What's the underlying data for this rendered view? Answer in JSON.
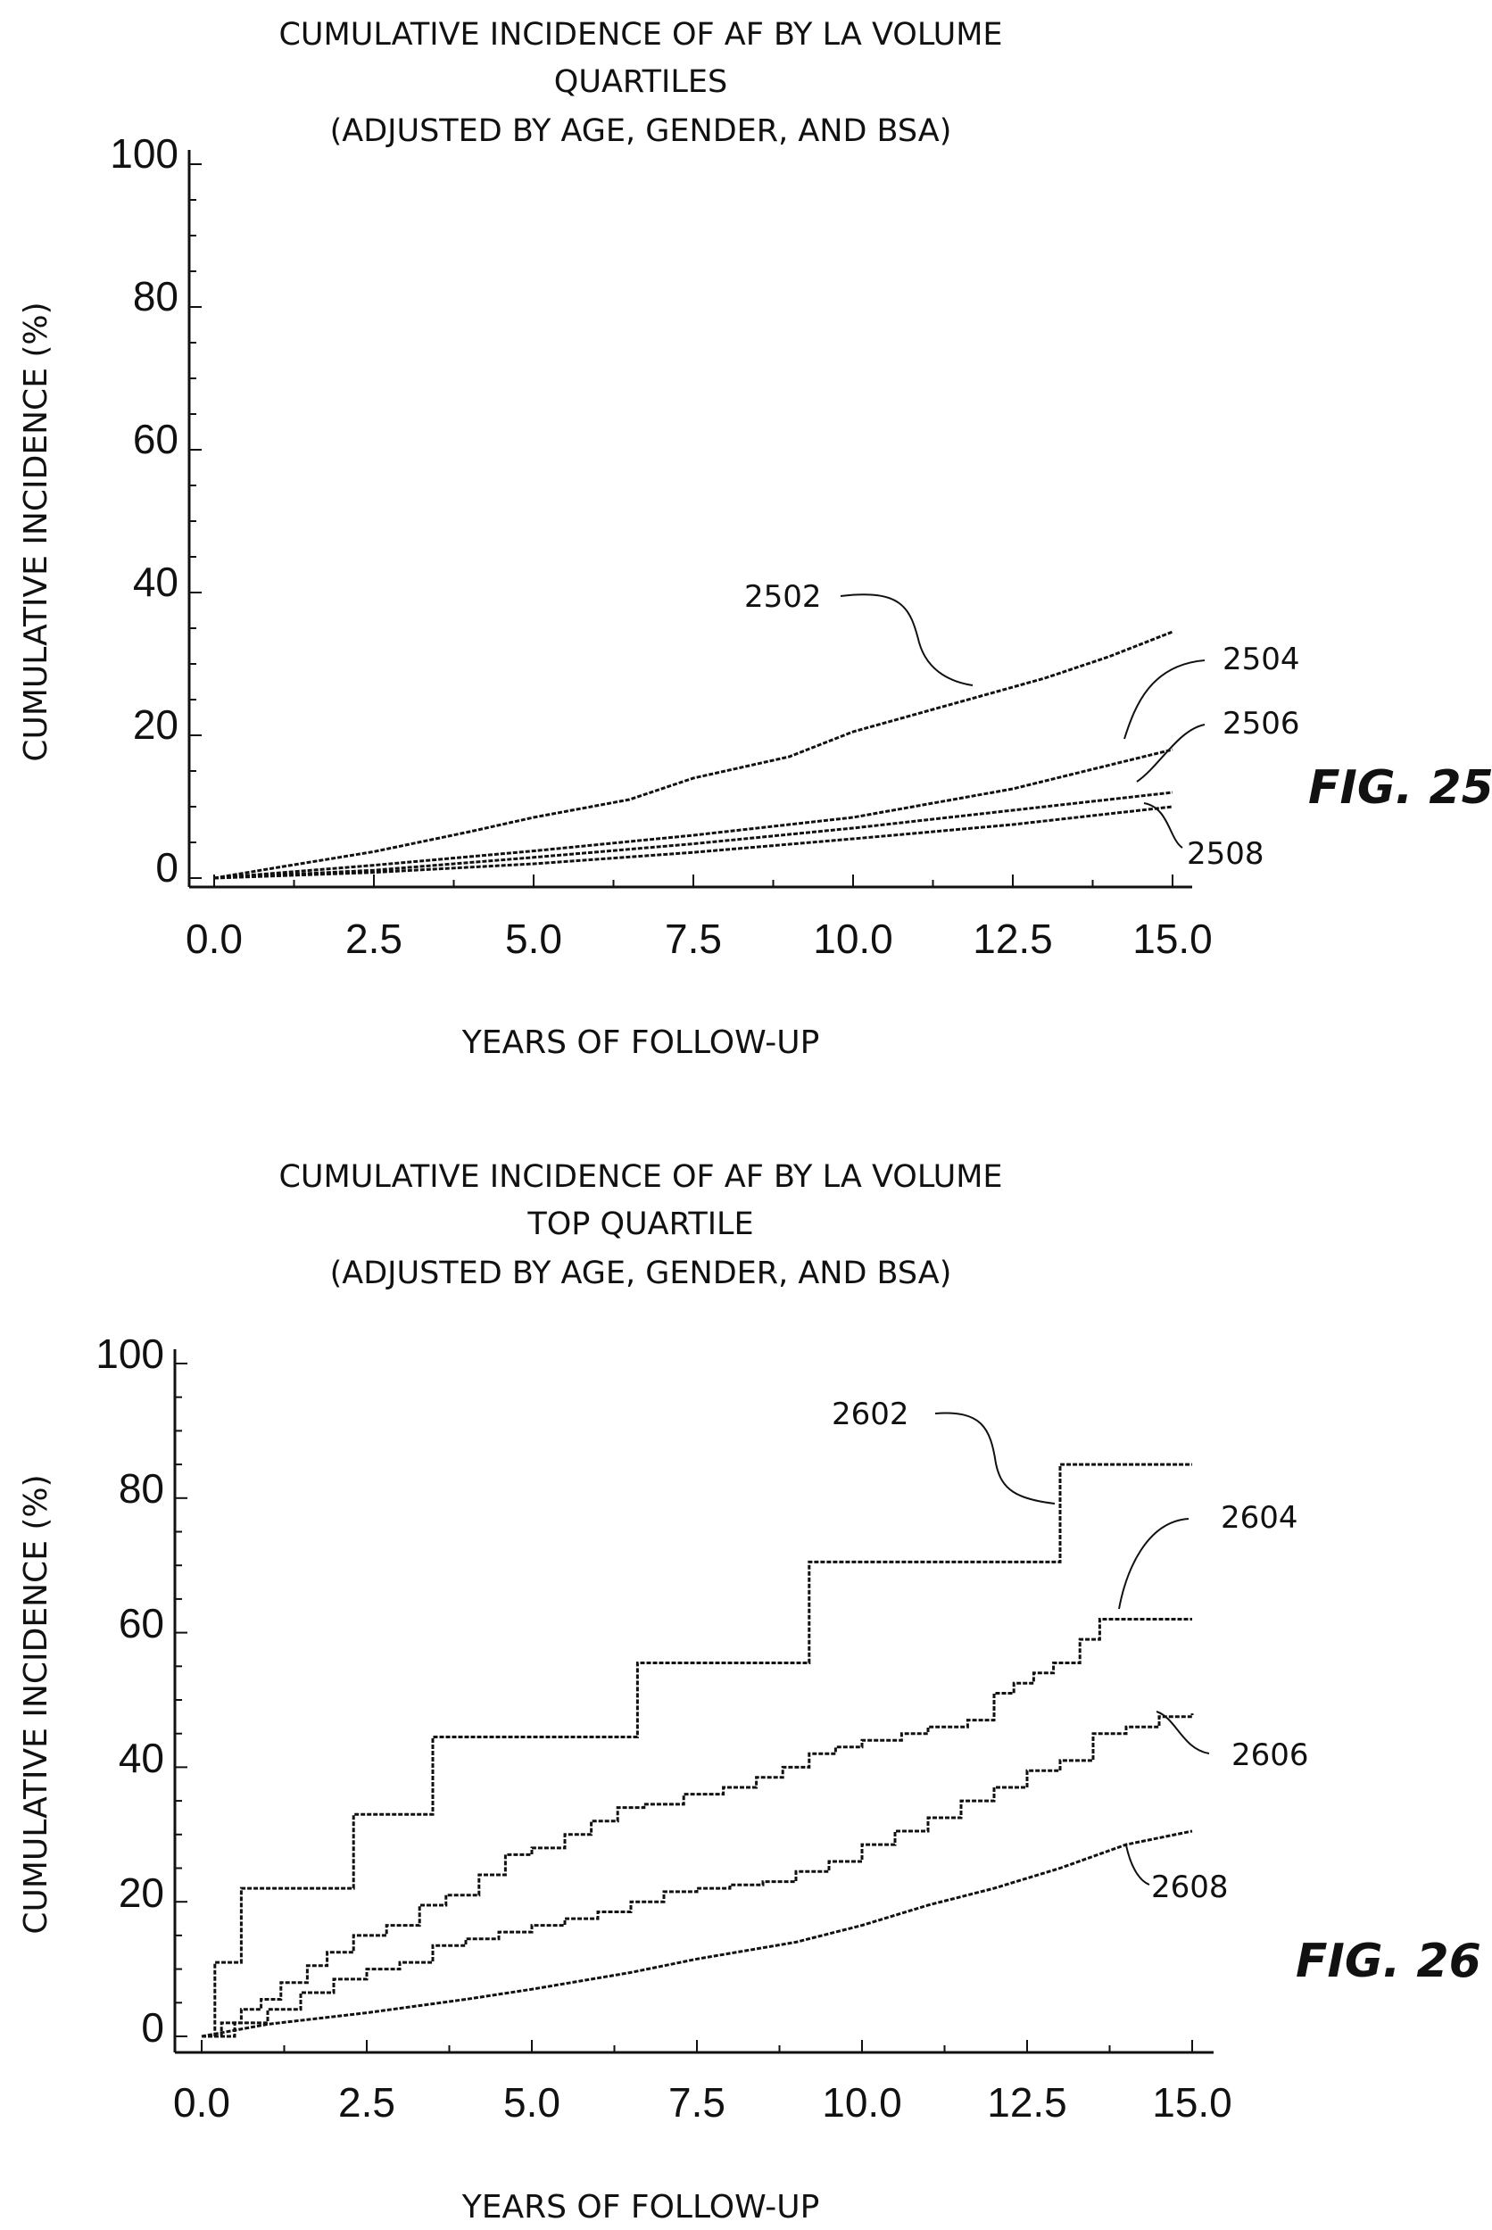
{
  "chart_data": [
    {
      "type": "line",
      "title": [
        "CUMULATIVE INCIDENCE OF AF BY LA VOLUME",
        "QUARTILES",
        "(ADJUSTED BY AGE, GENDER, AND BSA)"
      ],
      "xlabel": "YEARS OF FOLLOW-UP",
      "ylabel": "CUMULATIVE INCIDENCE (%)",
      "xlim": [
        0,
        15
      ],
      "ylim": [
        0,
        100
      ],
      "x_ticks": [
        "0.0",
        "2.5",
        "5.0",
        "7.5",
        "10.0",
        "12.5",
        "15.0"
      ],
      "y_ticks": [
        "0",
        "20",
        "40",
        "60",
        "80",
        "100"
      ],
      "figure_label": "FIG. 25",
      "series": [
        {
          "name": "2502",
          "step": false,
          "x": [
            0,
            1,
            2.5,
            4,
            5,
            6.5,
            7.5,
            9,
            10,
            11,
            12,
            13,
            14,
            15
          ],
          "y": [
            0,
            1.5,
            3.7,
            6.5,
            8.5,
            11,
            14,
            17,
            20.5,
            23,
            25.5,
            28,
            31,
            34.5
          ]
        },
        {
          "name": "2504",
          "step": false,
          "x": [
            0,
            2.5,
            5,
            7.5,
            10,
            12.5,
            15
          ],
          "y": [
            0,
            1.8,
            3.8,
            6,
            8.5,
            12.5,
            18
          ]
        },
        {
          "name": "2506",
          "step": false,
          "x": [
            0,
            2.5,
            5,
            7.5,
            10,
            12.5,
            15
          ],
          "y": [
            0,
            1.1,
            2.9,
            4.8,
            7,
            9.5,
            12
          ]
        },
        {
          "name": "2508",
          "step": false,
          "x": [
            0,
            2.5,
            5,
            7.5,
            10,
            12.5,
            15
          ],
          "y": [
            0,
            0.8,
            2,
            3.6,
            5.5,
            7.5,
            10
          ]
        }
      ]
    },
    {
      "type": "line",
      "title": [
        "CUMULATIVE INCIDENCE OF AF BY LA VOLUME",
        "TOP QUARTILE",
        "(ADJUSTED BY AGE, GENDER, AND BSA)"
      ],
      "xlabel": "YEARS OF FOLLOW-UP",
      "ylabel": "CUMULATIVE INCIDENCE (%)",
      "xlim": [
        0,
        15
      ],
      "ylim": [
        0,
        100
      ],
      "x_ticks": [
        "0.0",
        "2.5",
        "5.0",
        "7.5",
        "10.0",
        "12.5",
        "15.0"
      ],
      "y_ticks": [
        "0",
        "20",
        "40",
        "60",
        "80",
        "100"
      ],
      "figure_label": "FIG. 26",
      "series": [
        {
          "name": "2602",
          "step": true,
          "x": [
            0,
            0.2,
            0.6,
            2.3,
            3.5,
            6.6,
            9.2,
            13.0,
            15.0
          ],
          "y": [
            0,
            11,
            22,
            33,
            44.5,
            55.5,
            70.5,
            85,
            85
          ]
        },
        {
          "name": "2604",
          "step": true,
          "x": [
            0,
            0.3,
            0.6,
            0.9,
            1.2,
            1.6,
            1.9,
            2.3,
            2.8,
            3.3,
            3.7,
            4.2,
            4.6,
            5.0,
            5.5,
            5.9,
            6.3,
            6.7,
            7.3,
            7.9,
            8.4,
            8.8,
            9.2,
            9.6,
            10.0,
            10.6,
            11.0,
            11.6,
            12.0,
            12.3,
            12.6,
            12.9,
            13.3,
            13.6,
            14.0,
            15.0
          ],
          "y": [
            0,
            2,
            4,
            5.5,
            8,
            10.5,
            12.5,
            15,
            16.5,
            19.5,
            21,
            24,
            27,
            28,
            30,
            32,
            34,
            34.5,
            36,
            37,
            38.5,
            40,
            42,
            43,
            44,
            45,
            46,
            47,
            51,
            52.5,
            54,
            55.5,
            59,
            62,
            62,
            62
          ]
        },
        {
          "name": "2606",
          "step": true,
          "x": [
            0,
            0.5,
            1.0,
            1.5,
            2.0,
            2.5,
            3.0,
            3.5,
            4.0,
            4.5,
            5.0,
            5.5,
            6.0,
            6.5,
            7.0,
            7.5,
            8.0,
            8.5,
            9.0,
            9.5,
            10.0,
            10.5,
            11.0,
            11.5,
            12.0,
            12.5,
            13.0,
            13.5,
            14.0,
            14.5,
            15.0
          ],
          "y": [
            0,
            2,
            4,
            6.5,
            8.5,
            10,
            11,
            13.5,
            14.5,
            15.5,
            16.5,
            17.5,
            18.5,
            20,
            21.5,
            22,
            22.5,
            23,
            24.5,
            26,
            28.5,
            30.5,
            32.5,
            35,
            37,
            39.5,
            41,
            45,
            46,
            47.5,
            48
          ]
        },
        {
          "name": "2608",
          "step": false,
          "x": [
            0,
            1,
            2.5,
            4,
            5,
            6.5,
            7.5,
            9,
            10,
            11,
            12,
            13,
            14,
            15
          ],
          "y": [
            0,
            1.8,
            3.5,
            5.5,
            7,
            9.5,
            11.5,
            14,
            16.5,
            19.5,
            22,
            25,
            28.5,
            30.5
          ]
        }
      ]
    }
  ]
}
